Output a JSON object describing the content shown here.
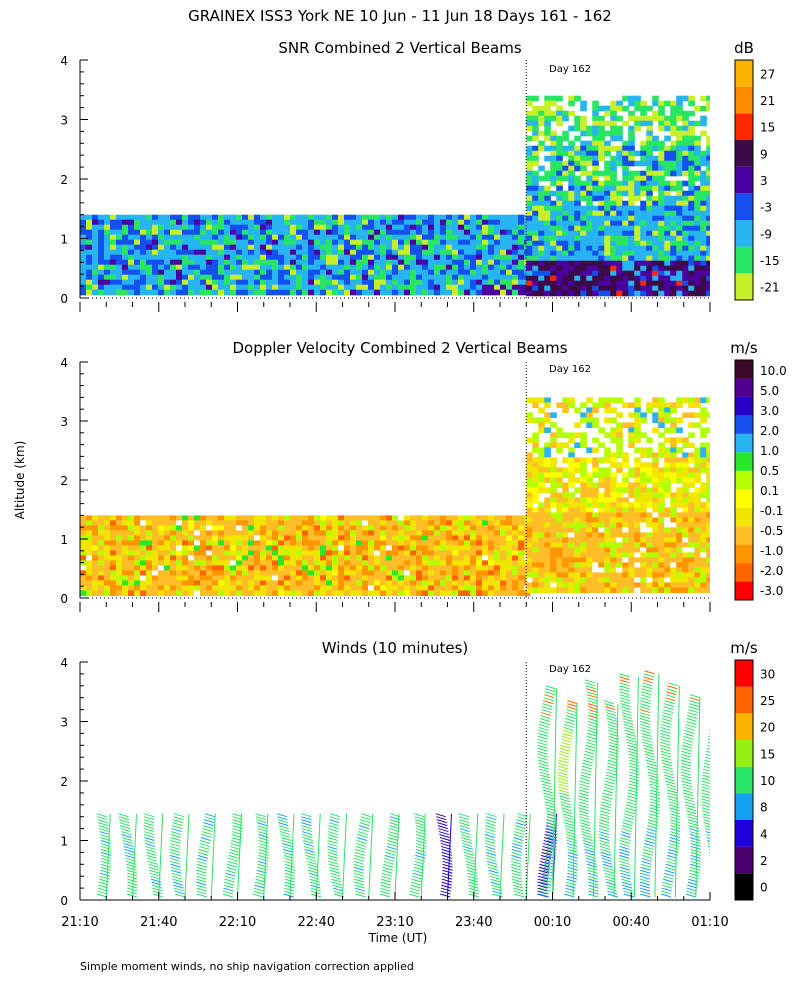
{
  "title": "GRAINEX ISS3 York NE  10 Jun - 11 Jun 18 Days 161 - 162",
  "ylabel": "Altitude (km)",
  "xlabel": "Time (UT)",
  "footnote": "Simple moment winds, no ship navigation correction applied",
  "day_marker_label": "Day 162",
  "colors": {
    "snr": [
      "#c8f028",
      "#28e664",
      "#28b4f0",
      "#1450f0",
      "#4b00a0",
      "#3c0a46",
      "#ff2800",
      "#ff8c00",
      "#ffb400"
    ],
    "vel": [
      "#ff0000",
      "#ff6400",
      "#ff9600",
      "#ffbe28",
      "#f0e600",
      "#ffff00",
      "#b4ff00",
      "#28e628",
      "#28b4f0",
      "#1450f0",
      "#2800c8",
      "#50008c",
      "#3c0a28"
    ],
    "wind": [
      "#000000",
      "#4b006e",
      "#1e00dc",
      "#14a0f0",
      "#28e664",
      "#96f014",
      "#ffb400",
      "#ff6400",
      "#ff0000"
    ]
  },
  "chart_data": [
    {
      "type": "heatmap",
      "title": "SNR Combined 2 Vertical Beams",
      "ylabel": "Altitude (km)",
      "x_ticks": [
        "21:10",
        "21:40",
        "22:10",
        "22:40",
        "23:10",
        "23:40",
        "00:10",
        "00:40",
        "01:10"
      ],
      "y_ticks": [
        "0",
        "1",
        "2",
        "3",
        "4"
      ],
      "ylim": [
        0,
        4
      ],
      "colorbar": {
        "unit": "dB",
        "ticks": [
          "27",
          "21",
          "15",
          "9",
          "3",
          "-3",
          "-9",
          "-15",
          "-21"
        ]
      },
      "coverage": [
        {
          "from": "21:10",
          "to": "00:00",
          "alt_min_km": 0.1,
          "alt_max_km": 1.4
        },
        {
          "from": "00:00",
          "to": "01:10",
          "alt_min_km": 0.1,
          "alt_max_km": 3.4
        }
      ],
      "day_marker": "00:00"
    },
    {
      "type": "heatmap",
      "title": "Doppler Velocity Combined 2 Vertical Beams",
      "ylabel": "Altitude (km)",
      "x_ticks": [
        "21:10",
        "21:40",
        "22:10",
        "22:40",
        "23:10",
        "23:40",
        "00:10",
        "00:40",
        "01:10"
      ],
      "y_ticks": [
        "0",
        "1",
        "2",
        "3",
        "4"
      ],
      "ylim": [
        0,
        4
      ],
      "colorbar": {
        "unit": "m/s",
        "ticks": [
          "10.0",
          "5.0",
          "3.0",
          "2.0",
          "1.0",
          "0.5",
          "0.1",
          "-0.1",
          "-0.5",
          "-1.0",
          "-2.0",
          "-3.0"
        ]
      },
      "coverage": [
        {
          "from": "21:10",
          "to": "00:00",
          "alt_min_km": 0.1,
          "alt_max_km": 1.4
        },
        {
          "from": "00:00",
          "to": "01:10",
          "alt_min_km": 0.1,
          "alt_max_km": 3.4
        }
      ],
      "day_marker": "00:00"
    },
    {
      "type": "scatter",
      "title": "Winds (10 minutes)",
      "ylabel": "Altitude (km)",
      "xlabel": "Time (UT)",
      "x_ticks": [
        "21:10",
        "21:40",
        "22:10",
        "22:40",
        "23:10",
        "23:40",
        "00:10",
        "00:40",
        "01:10"
      ],
      "y_ticks": [
        "0",
        "1",
        "2",
        "3",
        "4"
      ],
      "ylim": [
        0,
        4
      ],
      "colorbar": {
        "unit": "m/s",
        "ticks": [
          "30",
          "25",
          "20",
          "15",
          "10",
          "8",
          "4",
          "2",
          "0"
        ]
      },
      "profile_max_altitude_km": [
        1.45,
        1.45,
        1.45,
        1.45,
        1.45,
        1.45,
        1.45,
        1.45,
        1.45,
        1.45,
        1.45,
        1.45,
        1.45,
        1.45,
        1.45,
        1.45,
        1.45,
        1.45,
        3.55,
        3.3,
        3.65,
        3.3,
        3.75,
        3.8,
        3.6,
        3.4,
        3.05
      ],
      "day_marker": "00:00"
    }
  ]
}
